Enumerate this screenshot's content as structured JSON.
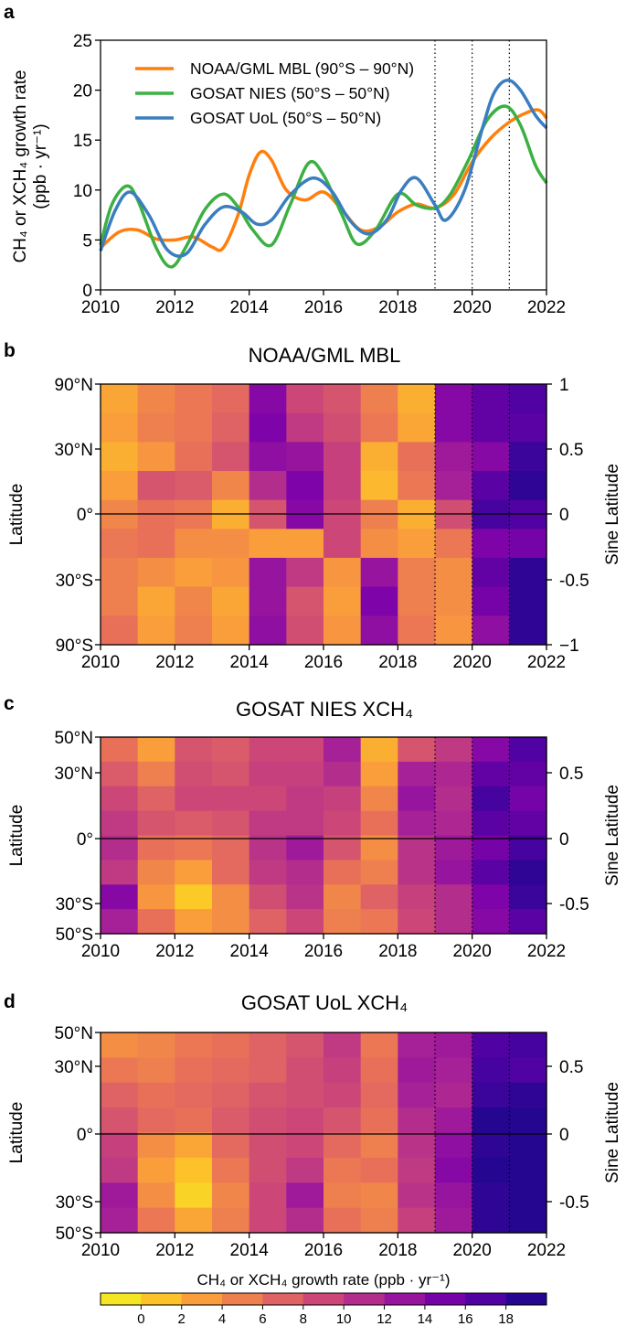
{
  "panel_labels": [
    "a",
    "b",
    "c",
    "d"
  ],
  "colors": {
    "noaa": "#ff7f0e",
    "nies": "#3cb043",
    "uol": "#3a7ebf",
    "cmap": [
      "#f0f921",
      "#fdc527",
      "#f89540",
      "#e66c5c",
      "#cc4778",
      "#aa2395",
      "#7e03a8",
      "#4c02a1",
      "#0d0887"
    ]
  },
  "chart_data": [
    {
      "type": "line",
      "panel": "a",
      "ylabel_line1": "CH₄ or XCH₄ growth rate",
      "ylabel_line2": "(ppb · yr⁻¹)",
      "xlim": [
        2010,
        2022
      ],
      "ylim": [
        0,
        25
      ],
      "x_ticks": [
        "2010",
        "2012",
        "2014",
        "2016",
        "2018",
        "2020",
        "2022"
      ],
      "y_ticks": [
        "0",
        "5",
        "10",
        "15",
        "20",
        "25"
      ],
      "vlines": [
        2019,
        2020,
        2021
      ],
      "legend_position": "top-left",
      "series": [
        {
          "name": "NOAA/GML MBL (90°S – 90°N)",
          "key": "noaa",
          "x": [
            2010,
            2010.5,
            2011,
            2011.5,
            2012,
            2012.5,
            2013,
            2013.3,
            2013.7,
            2014,
            2014.3,
            2014.6,
            2015,
            2015.5,
            2016,
            2016.5,
            2017,
            2017.5,
            2018,
            2018.5,
            2019,
            2019.5,
            2020,
            2020.5,
            2021,
            2021.5,
            2021.8,
            2022
          ],
          "y": [
            4.2,
            5.8,
            6.0,
            5.1,
            5.0,
            5.3,
            4.3,
            4.2,
            7.5,
            11.5,
            13.8,
            13.0,
            10.0,
            9.0,
            9.8,
            8.0,
            6.0,
            6.3,
            7.8,
            8.6,
            8.2,
            9.5,
            12.8,
            15.2,
            16.8,
            17.8,
            18.0,
            17.2
          ]
        },
        {
          "name": "GOSAT NIES (50°S – 50°N)",
          "key": "nies",
          "x": [
            2010,
            2010.3,
            2010.7,
            2011,
            2011.5,
            2011.9,
            2012.3,
            2012.8,
            2013.3,
            2013.7,
            2014.1,
            2014.6,
            2015.1,
            2015.6,
            2016,
            2016.5,
            2016.9,
            2017.4,
            2018,
            2018.5,
            2019,
            2019.4,
            2019.9,
            2020.4,
            2020.9,
            2021.3,
            2021.7,
            2022
          ],
          "y": [
            4.5,
            8.5,
            10.4,
            9.0,
            4.2,
            2.3,
            4.3,
            8.0,
            9.6,
            8.3,
            6.0,
            4.5,
            8.5,
            12.7,
            11.5,
            7.5,
            4.6,
            6.0,
            9.6,
            8.5,
            8.2,
            9.5,
            13.0,
            17.0,
            18.4,
            16.5,
            12.5,
            10.7
          ]
        },
        {
          "name": "GOSAT UoL (50°S – 50°N)",
          "key": "uol",
          "x": [
            2010,
            2010.4,
            2010.8,
            2011.3,
            2011.8,
            2012.3,
            2012.8,
            2013.3,
            2013.8,
            2014.2,
            2014.6,
            2015.1,
            2015.7,
            2016.2,
            2016.7,
            2017.2,
            2017.7,
            2018.1,
            2018.5,
            2019,
            2019.3,
            2019.8,
            2020.3,
            2020.6,
            2020.95,
            2021.3,
            2021.7,
            2022
          ],
          "y": [
            3.9,
            8.0,
            9.8,
            7.5,
            4.0,
            3.6,
            6.5,
            8.3,
            7.8,
            6.6,
            7.0,
            9.5,
            11.2,
            10.0,
            7.0,
            5.6,
            7.0,
            10.0,
            11.2,
            8.5,
            7.0,
            10.0,
            16.5,
            19.8,
            21.0,
            20.0,
            17.5,
            16.2
          ]
        }
      ]
    },
    {
      "type": "heatmap",
      "panel": "b",
      "title": "NOAA/GML MBL",
      "ylabel": "Latitude",
      "ylabel_right": "Sine Latitude",
      "y_ticks": [
        "90°N",
        "30°N",
        "0°",
        "30°S",
        "90°S"
      ],
      "y_ticks_right": [
        "1",
        "0.5",
        "0",
        "-0.5",
        "−1"
      ],
      "x_ticks": [
        "2010",
        "2012",
        "2014",
        "2016",
        "2018",
        "2020",
        "2022"
      ],
      "year_columns": [
        2010,
        2011,
        2012,
        2013,
        2014,
        2015,
        2016,
        2017,
        2018,
        2019,
        2020,
        2021
      ],
      "rows_north_to_south": [
        [
          2.5,
          4.5,
          5.5,
          6.5,
          14.0,
          9.0,
          8.0,
          5.0,
          2.0,
          14.0,
          16.0,
          17.0
        ],
        [
          3.0,
          5.0,
          5.5,
          7.0,
          14.5,
          10.0,
          8.5,
          5.5,
          2.5,
          14.0,
          16.0,
          16.5
        ],
        [
          2.0,
          3.5,
          6.0,
          8.0,
          13.5,
          13.0,
          9.5,
          2.0,
          6.0,
          12.5,
          14.0,
          18.0
        ],
        [
          3.0,
          8.0,
          7.5,
          4.5,
          11.0,
          14.5,
          9.5,
          1.5,
          5.5,
          12.0,
          16.5,
          18.5
        ],
        [
          4.5,
          6.0,
          5.5,
          2.0,
          8.0,
          14.0,
          9.0,
          5.0,
          2.0,
          8.5,
          17.5,
          17.0
        ],
        [
          5.5,
          6.0,
          4.0,
          4.0,
          3.0,
          3.0,
          9.0,
          4.0,
          3.0,
          5.5,
          14.5,
          15.0
        ],
        [
          5.0,
          4.0,
          3.0,
          3.5,
          13.0,
          10.0,
          3.5,
          13.0,
          5.0,
          4.0,
          16.0,
          18.5
        ],
        [
          5.0,
          2.5,
          4.5,
          2.5,
          13.0,
          8.0,
          3.0,
          14.5,
          5.0,
          4.0,
          15.0,
          18.5
        ],
        [
          6.0,
          3.0,
          5.0,
          3.0,
          13.5,
          8.5,
          3.5,
          13.5,
          5.5,
          3.5,
          13.5,
          18.5
        ]
      ]
    },
    {
      "type": "heatmap",
      "panel": "c",
      "title": "GOSAT NIES XCH₄",
      "ylabel": "Latitude",
      "ylabel_right": "Sine Latitude",
      "y_ticks": [
        "50°N",
        "30°N",
        "0°",
        "30°S",
        "50°S"
      ],
      "y_ticks_right": [
        "0.5",
        "0",
        "-0.5"
      ],
      "x_ticks": [
        "2010",
        "2012",
        "2014",
        "2016",
        "2018",
        "2020",
        "2022"
      ],
      "year_columns": [
        2010,
        2011,
        2012,
        2013,
        2014,
        2015,
        2016,
        2017,
        2018,
        2019,
        2020,
        2021
      ],
      "rows_north_to_south": [
        [
          6.0,
          3.0,
          8.0,
          7.5,
          9.0,
          9.0,
          12.0,
          2.0,
          8.0,
          10.0,
          14.0,
          17.0
        ],
        [
          7.5,
          5.0,
          8.5,
          8.0,
          9.5,
          9.5,
          11.0,
          3.0,
          12.0,
          11.5,
          16.0,
          16.0
        ],
        [
          9.0,
          7.0,
          9.0,
          9.0,
          9.0,
          10.0,
          9.5,
          4.5,
          13.0,
          11.0,
          17.5,
          15.0
        ],
        [
          10.0,
          8.0,
          7.5,
          8.0,
          10.0,
          10.0,
          9.0,
          6.0,
          12.0,
          11.5,
          16.5,
          16.0
        ],
        [
          11.0,
          6.0,
          5.5,
          6.5,
          10.5,
          12.5,
          8.0,
          4.0,
          10.5,
          12.5,
          15.0,
          17.5
        ],
        [
          10.0,
          4.5,
          3.0,
          6.5,
          10.0,
          11.0,
          6.0,
          5.0,
          10.5,
          13.0,
          16.5,
          18.5
        ],
        [
          14.0,
          3.5,
          0.5,
          4.0,
          8.5,
          10.5,
          4.5,
          7.0,
          9.5,
          11.0,
          14.5,
          18.0
        ],
        [
          12.0,
          6.0,
          3.0,
          4.0,
          7.0,
          9.0,
          5.0,
          5.5,
          9.0,
          11.0,
          14.0,
          16.5
        ]
      ]
    },
    {
      "type": "heatmap",
      "panel": "d",
      "title": "GOSAT UoL XCH₄",
      "ylabel": "Latitude",
      "ylabel_right": "Sine Latitude",
      "y_ticks": [
        "50°N",
        "30°N",
        "0°",
        "30°S",
        "50°S"
      ],
      "y_ticks_right": [
        "0.5",
        "0",
        "-0.5"
      ],
      "x_ticks": [
        "2010",
        "2012",
        "2014",
        "2016",
        "2018",
        "2020",
        "2022"
      ],
      "year_columns": [
        2010,
        2011,
        2012,
        2013,
        2014,
        2015,
        2016,
        2017,
        2018,
        2019,
        2020,
        2021
      ],
      "rows_north_to_south": [
        [
          4.0,
          4.5,
          5.5,
          6.0,
          7.0,
          8.0,
          10.0,
          5.5,
          12.0,
          12.5,
          17.0,
          17.5
        ],
        [
          5.5,
          5.0,
          6.0,
          6.5,
          7.0,
          8.5,
          9.5,
          6.0,
          12.5,
          12.0,
          17.5,
          17.0
        ],
        [
          7.0,
          6.0,
          6.5,
          7.0,
          8.0,
          8.5,
          9.0,
          6.5,
          12.0,
          11.5,
          18.0,
          18.5
        ],
        [
          8.0,
          6.5,
          6.0,
          7.5,
          8.5,
          9.0,
          8.0,
          6.0,
          11.0,
          12.5,
          19.0,
          19.0
        ],
        [
          9.5,
          4.0,
          2.5,
          6.5,
          8.5,
          9.0,
          6.5,
          5.0,
          10.5,
          13.5,
          18.5,
          19.0
        ],
        [
          10.0,
          3.0,
          1.0,
          5.5,
          8.5,
          10.0,
          5.5,
          6.0,
          10.0,
          14.0,
          19.0,
          19.0
        ],
        [
          12.5,
          4.0,
          0.0,
          4.5,
          9.0,
          12.5,
          5.0,
          4.5,
          10.5,
          13.0,
          18.5,
          19.0
        ],
        [
          12.0,
          5.5,
          2.5,
          5.0,
          9.0,
          11.0,
          6.0,
          5.0,
          9.5,
          12.5,
          18.5,
          19.0
        ]
      ]
    }
  ],
  "colorbar": {
    "label": "CH₄ or XCH₄ growth rate (ppb · yr⁻¹)",
    "range": [
      -2,
      20
    ],
    "ticks": [
      "0",
      "2",
      "4",
      "6",
      "8",
      "10",
      "12",
      "14",
      "16",
      "18"
    ]
  }
}
